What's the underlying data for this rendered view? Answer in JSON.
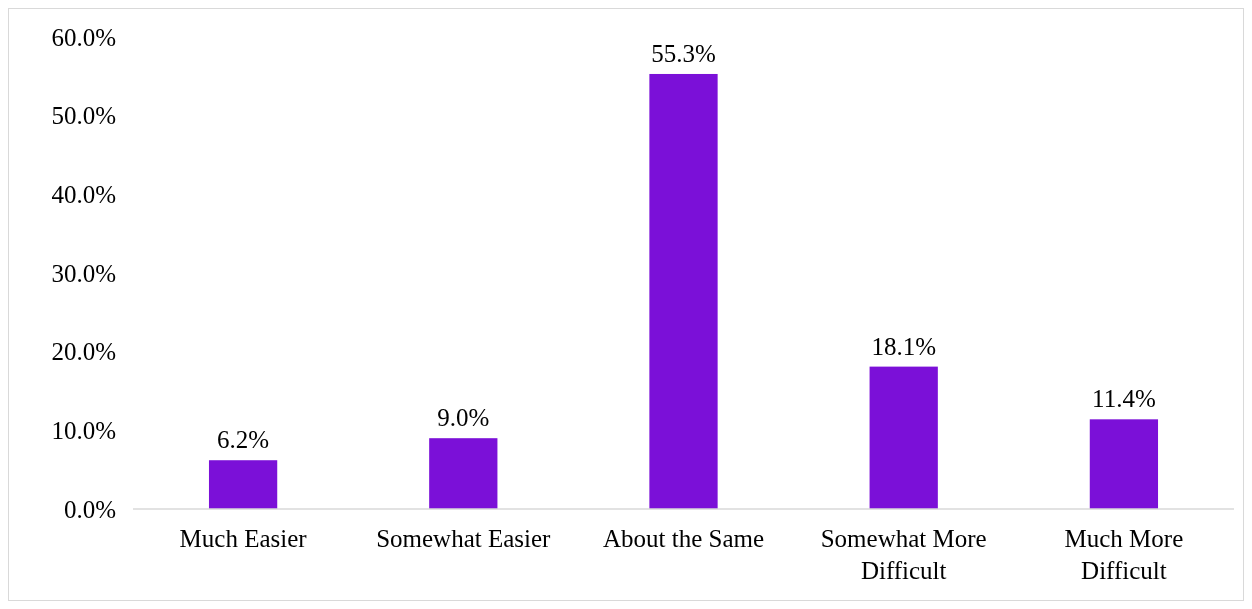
{
  "chart_data": {
    "type": "bar",
    "categories": [
      "Much Easier",
      "Somewhat Easier",
      "About the Same",
      "Somewhat More Difficult",
      "Much More Difficult"
    ],
    "values": [
      6.2,
      9.0,
      55.3,
      18.1,
      11.4
    ],
    "value_labels": [
      "6.2%",
      "9.0%",
      "55.3%",
      "18.1%",
      "11.4%"
    ],
    "color": "#7b10d8",
    "ylim": [
      0,
      60
    ],
    "yticks": [
      {
        "value": 0,
        "label": "0.0%"
      },
      {
        "value": 10,
        "label": "10.0%"
      },
      {
        "value": 20,
        "label": "20.0%"
      },
      {
        "value": 30,
        "label": "30.0%"
      },
      {
        "value": 40,
        "label": "40.0%"
      },
      {
        "value": 50,
        "label": "50.0%"
      },
      {
        "value": 60,
        "label": "60.0%"
      }
    ]
  }
}
